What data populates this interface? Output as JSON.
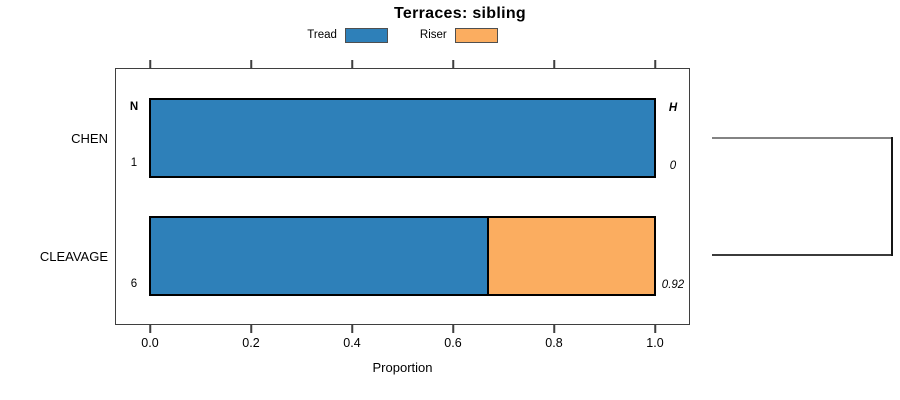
{
  "title": "Terraces: sibling",
  "legend": {
    "items": [
      {
        "label": "Tread",
        "color": "#2E80B9"
      },
      {
        "label": "Riser",
        "color": "#FBAD60"
      }
    ]
  },
  "axis": {
    "xlabel": "Proportion"
  },
  "columns": {
    "n_header": "N",
    "h_header": "H"
  },
  "rows": [
    {
      "label": "CHEN",
      "n": "1",
      "h": "0"
    },
    {
      "label": "CLEAVAGE",
      "n": "6",
      "h": "0.92"
    }
  ],
  "chart_data": {
    "type": "bar",
    "orientation": "horizontal",
    "stacked": true,
    "title": "Terraces: sibling",
    "xlabel": "Proportion",
    "xlim": [
      0,
      1
    ],
    "x_ticks": [
      0.0,
      0.2,
      0.4,
      0.6,
      0.8,
      1.0
    ],
    "x_tick_labels": [
      "0.0",
      "0.2",
      "0.4",
      "0.6",
      "0.8",
      "1.0"
    ],
    "categories": [
      "CHEN",
      "CLEAVAGE"
    ],
    "series": [
      {
        "name": "Tread",
        "color": "#2E80B9",
        "values": [
          1.0,
          0.667
        ]
      },
      {
        "name": "Riser",
        "color": "#FBAD60",
        "values": [
          0.0,
          0.333
        ]
      }
    ],
    "annotations": {
      "N": [
        "1",
        "6"
      ],
      "H": [
        "0",
        "0.92"
      ]
    },
    "legend_position": "top",
    "grid": false,
    "dendrogram": {
      "side": "right",
      "joins": [
        "CHEN",
        "CLEAVAGE"
      ]
    }
  }
}
